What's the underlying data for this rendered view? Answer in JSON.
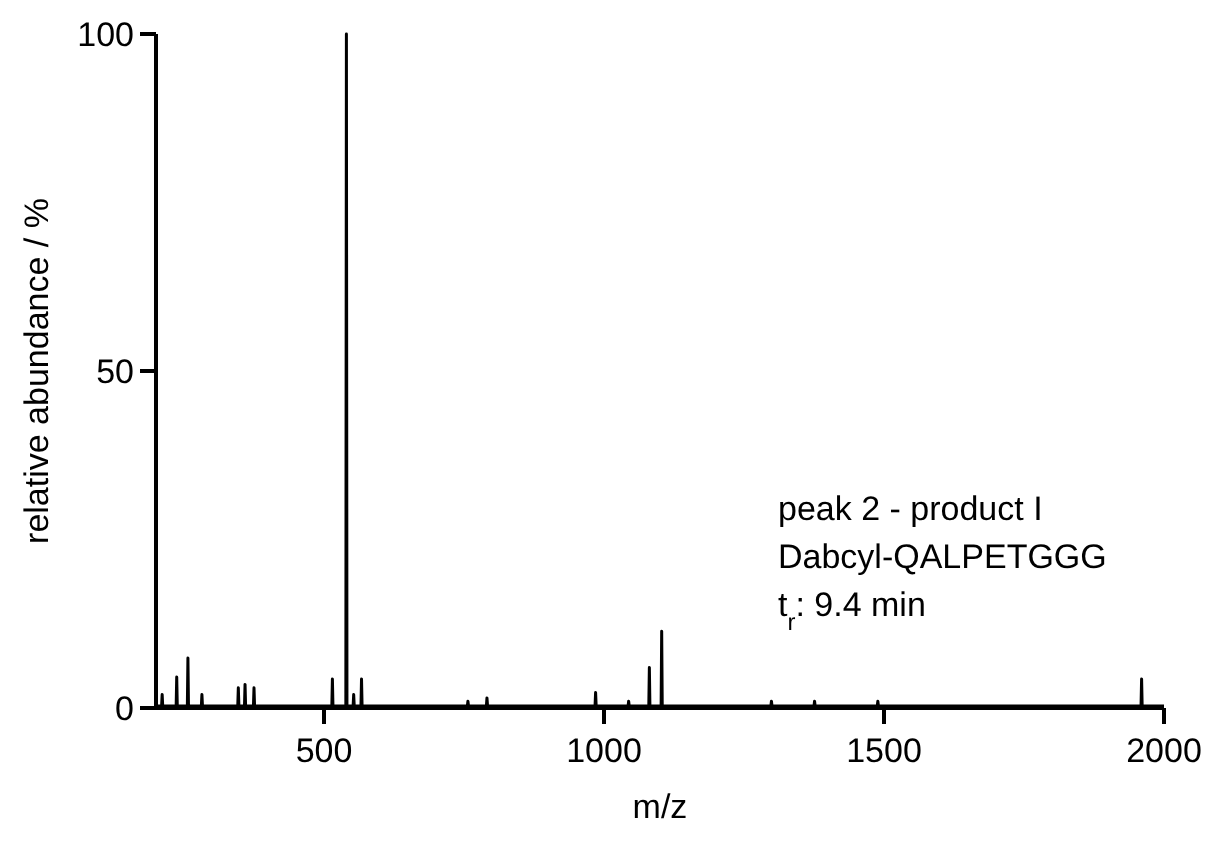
{
  "chart_data": {
    "type": "line",
    "xlabel": "m/z",
    "ylabel": "relative abundance / %",
    "xlim": [
      200,
      2000
    ],
    "ylim": [
      0,
      100
    ],
    "xticks": [
      500,
      1000,
      1500,
      2000
    ],
    "yticks": [
      0,
      50,
      100
    ],
    "grid": false,
    "marker": "none",
    "line_style": "solid",
    "annotations": [
      "peak 2 - product I",
      "Dabcyl-QALPETGGG",
      "t$_{r}$: 9.4 min"
    ],
    "series": [
      {
        "color": "#000000",
        "x": [
          200,
          210,
          211,
          212,
          236,
          237,
          238,
          256,
          257,
          258,
          281,
          282,
          283,
          346,
          347,
          348,
          358,
          359,
          360,
          374,
          375,
          376,
          514,
          515,
          516,
          539,
          540,
          541,
          552,
          553,
          554,
          566,
          567,
          568,
          756,
          757,
          758,
          790,
          791,
          792,
          984,
          985,
          986,
          1043,
          1044,
          1045,
          1080,
          1081,
          1082,
          1102,
          1103,
          1104,
          1298,
          1299,
          1300,
          1375,
          1376,
          1377,
          1488,
          1489,
          1490,
          1959,
          1960,
          1961,
          2000
        ],
        "values": [
          0.3,
          0.3,
          2,
          0.3,
          0.3,
          4.6,
          0.3,
          0.3,
          7.4,
          0.3,
          0.3,
          2,
          0.3,
          0.3,
          3,
          0.3,
          0.3,
          3.5,
          0.3,
          0.3,
          3,
          0.3,
          0.3,
          4.3,
          0.3,
          0.3,
          100,
          0.3,
          0.3,
          2,
          0.3,
          0.3,
          4.3,
          0.3,
          0.3,
          1,
          0.3,
          0.3,
          1.5,
          0.3,
          0.3,
          2.3,
          0.3,
          0.3,
          1,
          0.3,
          0.3,
          6,
          0.3,
          0.3,
          11.4,
          0.3,
          0.3,
          1,
          0.3,
          0.3,
          1,
          0.3,
          0.3,
          1,
          0.3,
          0.3,
          4.3,
          0.3,
          0.3
        ]
      }
    ]
  }
}
